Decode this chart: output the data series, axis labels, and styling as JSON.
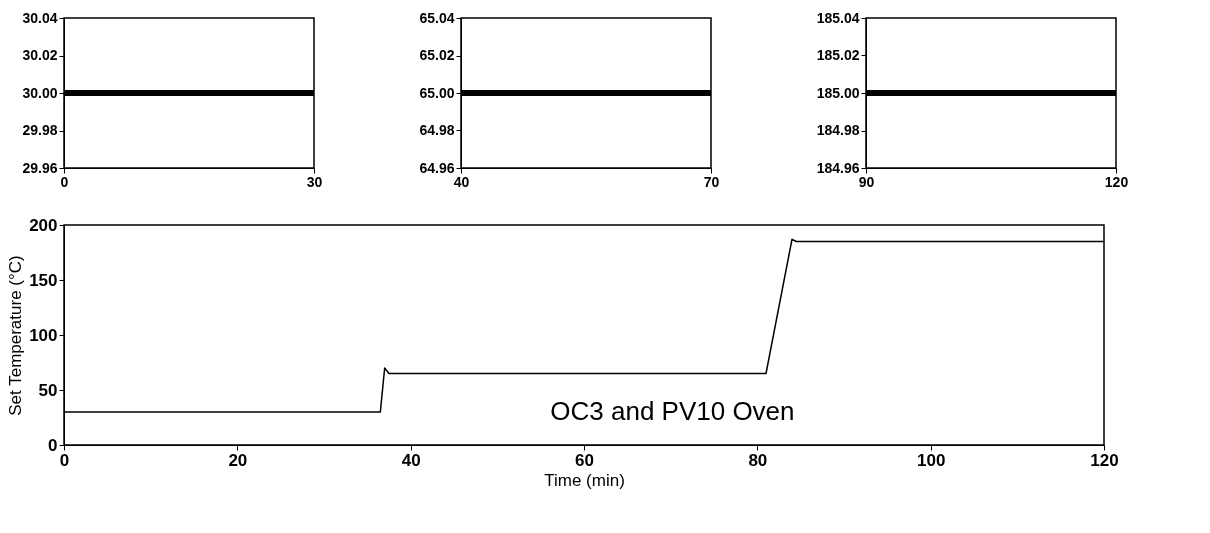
{
  "chart_data": [
    {
      "type": "line",
      "xlabel": "Time (min)",
      "ylabel": "Set Temperature (°C)",
      "xlim": [
        0,
        120
      ],
      "ylim": [
        0,
        200
      ],
      "xticks": [
        0,
        20,
        40,
        60,
        80,
        100,
        120
      ],
      "yticks": [
        0,
        50,
        100,
        150,
        200
      ],
      "annotations": [
        "OC3 and PV10 Oven"
      ],
      "series": [
        {
          "color": "#000000",
          "x": [
            0,
            36.5,
            37,
            37.5,
            81,
            84,
            84.5,
            120
          ],
          "values": [
            30,
            30,
            70,
            65,
            65,
            187,
            185,
            185
          ]
        }
      ]
    },
    {
      "type": "line",
      "xlim": [
        0,
        30
      ],
      "ylim": [
        29.96,
        30.04
      ],
      "xticks": [
        0,
        30
      ],
      "yticks": [
        29.96,
        29.98,
        {
          "value": 30,
          "label": "30.00"
        },
        30.02,
        30.04
      ],
      "series": [
        {
          "color": "#000000",
          "x": [
            0,
            30
          ],
          "values": [
            30,
            30
          ]
        }
      ]
    },
    {
      "type": "line",
      "xlim": [
        40,
        70
      ],
      "ylim": [
        64.96,
        65.04
      ],
      "xticks": [
        40,
        70
      ],
      "yticks": [
        64.96,
        64.98,
        {
          "value": 65,
          "label": "65.00"
        },
        65.02,
        65.04
      ],
      "series": [
        {
          "color": "#000000",
          "x": [
            40,
            70
          ],
          "values": [
            65,
            65
          ]
        }
      ]
    },
    {
      "type": "line",
      "xlim": [
        90,
        120
      ],
      "ylim": [
        184.96,
        185.04
      ],
      "xticks": [
        90,
        120
      ],
      "yticks": [
        184.96,
        184.98,
        {
          "value": 185,
          "label": "185.00"
        },
        185.02,
        185.04
      ],
      "series": [
        {
          "color": "#000000",
          "x": [
            90,
            120
          ],
          "values": [
            185,
            185
          ]
        }
      ]
    }
  ]
}
